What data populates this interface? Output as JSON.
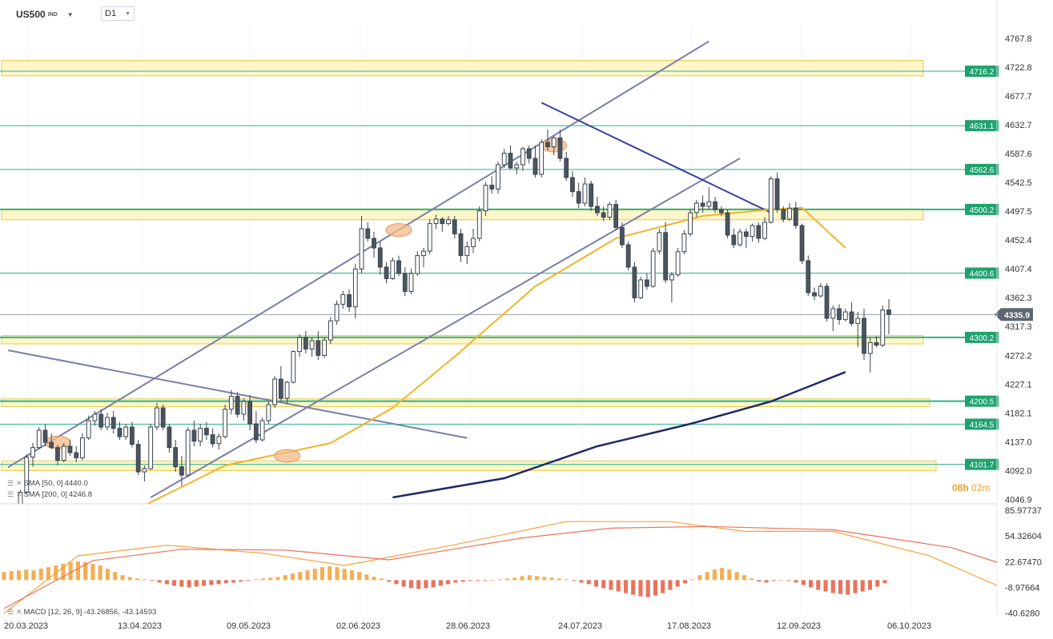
{
  "header": {
    "symbol": "US500",
    "symbol_sup": "IND",
    "timeframe": "D1"
  },
  "indicators": {
    "sma50": {
      "label": "SMA [50, 0]",
      "value": "4440.0"
    },
    "sma200": {
      "label": "SMA [200, 0]",
      "value": "4246.8"
    },
    "macd": {
      "label": "MACD [12, 26, 9]",
      "values": "-43.26856, -43.14593"
    }
  },
  "timer": {
    "hours": "08h",
    "minutes": "02m"
  },
  "colors": {
    "up": "#ffffff",
    "down": "#4a5560",
    "level_line": "#2bb38b",
    "level_badge": "#1ea370",
    "zone_fill": "#fff4b8",
    "zone_border": "#e8c84a",
    "sma50": "#f0b429",
    "sma200": "#1f2a6b",
    "trend_line": "#7a7fa8",
    "macd_up": "#f4ae54",
    "macd_down": "#e8735a",
    "marker": "#f3b98a",
    "current_badge": "#5e6670"
  },
  "chart_data": {
    "type": "candlestick",
    "instrument": "US500",
    "timeframe": "D1",
    "price_axis_ticks": [
      "4767.8",
      "4722.8",
      "4677.7",
      "4632.7",
      "4587.6",
      "4542.5",
      "4497.5",
      "4452.4",
      "4407.4",
      "4362.3",
      "4317.3",
      "4272.2",
      "4227.1",
      "4182.1",
      "4137.0",
      "4092.0",
      "4046.9"
    ],
    "price_range": [
      4040,
      4790
    ],
    "date_ticks": [
      "20.03.2023",
      "13.04.2023",
      "09.05.2023",
      "02.06.2023",
      "28.06.2023",
      "24.07.2023",
      "17.08.2023",
      "12.09.2023",
      "06.10.2023"
    ],
    "horizontal_levels": [
      4716.2,
      4631.1,
      4562.6,
      4500.2,
      4400.6,
      4300.2,
      4200.5,
      4164.5,
      4101.7
    ],
    "level_labels": [
      "4716.2",
      "4631.1",
      "4562.6",
      "4500.2",
      "4400.6",
      "4300.2",
      "4200.5",
      "4164.5",
      "4101.7"
    ],
    "supply_demand_zones": [
      [
        4709,
        4733
      ],
      [
        4484,
        4501
      ],
      [
        4290,
        4303
      ],
      [
        4192,
        4204
      ],
      [
        4092,
        4107
      ]
    ],
    "current_price": 4335.9,
    "current_price_label": "4335.9",
    "candles": [
      [
        4002,
        4012,
        3990,
        4000
      ],
      [
        4000,
        4035,
        3995,
        4030
      ],
      [
        4030,
        4062,
        4025,
        4058
      ],
      [
        4058,
        4118,
        4055,
        4113
      ],
      [
        4113,
        4135,
        4098,
        4128
      ],
      [
        4128,
        4160,
        4125,
        4155
      ],
      [
        4155,
        4165,
        4130,
        4136
      ],
      [
        4136,
        4150,
        4125,
        4128
      ],
      [
        4128,
        4132,
        4100,
        4108
      ],
      [
        4108,
        4135,
        4105,
        4130
      ],
      [
        4130,
        4140,
        4115,
        4120
      ],
      [
        4120,
        4130,
        4105,
        4112
      ],
      [
        4112,
        4150,
        4108,
        4143
      ],
      [
        4143,
        4178,
        4140,
        4170
      ],
      [
        4170,
        4185,
        4162,
        4180
      ],
      [
        4180,
        4188,
        4155,
        4160
      ],
      [
        4160,
        4182,
        4155,
        4175
      ],
      [
        4175,
        4185,
        4150,
        4158
      ],
      [
        4158,
        4168,
        4140,
        4145
      ],
      [
        4145,
        4165,
        4140,
        4160
      ],
      [
        4160,
        4168,
        4128,
        4133
      ],
      [
        4133,
        4140,
        4085,
        4090
      ],
      [
        4090,
        4100,
        4075,
        4095
      ],
      [
        4095,
        4165,
        4093,
        4160
      ],
      [
        4160,
        4198,
        4155,
        4190
      ],
      [
        4190,
        4195,
        4155,
        4160
      ],
      [
        4160,
        4165,
        4120,
        4128
      ],
      [
        4128,
        4140,
        4090,
        4098
      ],
      [
        4098,
        4115,
        4068,
        4085
      ],
      [
        4085,
        4160,
        4082,
        4155
      ],
      [
        4155,
        4170,
        4130,
        4138
      ],
      [
        4138,
        4165,
        4130,
        4158
      ],
      [
        4158,
        4168,
        4140,
        4148
      ],
      [
        4148,
        4158,
        4128,
        4134
      ],
      [
        4134,
        4150,
        4125,
        4145
      ],
      [
        4145,
        4195,
        4142,
        4188
      ],
      [
        4188,
        4218,
        4180,
        4208
      ],
      [
        4208,
        4215,
        4175,
        4180
      ],
      [
        4180,
        4205,
        4170,
        4200
      ],
      [
        4200,
        4210,
        4155,
        4165
      ],
      [
        4165,
        4185,
        4135,
        4140
      ],
      [
        4140,
        4175,
        4137,
        4170
      ],
      [
        4170,
        4200,
        4165,
        4195
      ],
      [
        4195,
        4240,
        4190,
        4235
      ],
      [
        4235,
        4255,
        4200,
        4205
      ],
      [
        4205,
        4232,
        4196,
        4230
      ],
      [
        4230,
        4280,
        4228,
        4278
      ],
      [
        4278,
        4305,
        4270,
        4300
      ],
      [
        4300,
        4310,
        4275,
        4282
      ],
      [
        4282,
        4300,
        4270,
        4295
      ],
      [
        4295,
        4310,
        4265,
        4272
      ],
      [
        4272,
        4300,
        4268,
        4296
      ],
      [
        4296,
        4332,
        4290,
        4326
      ],
      [
        4326,
        4358,
        4320,
        4352
      ],
      [
        4352,
        4373,
        4345,
        4367
      ],
      [
        4367,
        4375,
        4340,
        4348
      ],
      [
        4348,
        4415,
        4330,
        4407
      ],
      [
        4407,
        4490,
        4400,
        4470
      ],
      [
        4470,
        4480,
        4450,
        4455
      ],
      [
        4455,
        4465,
        4425,
        4440
      ],
      [
        4440,
        4450,
        4398,
        4410
      ],
      [
        4410,
        4418,
        4385,
        4392
      ],
      [
        4392,
        4425,
        4390,
        4420
      ],
      [
        4420,
        4428,
        4396,
        4400
      ],
      [
        4400,
        4410,
        4365,
        4372
      ],
      [
        4372,
        4408,
        4368,
        4400
      ],
      [
        4400,
        4435,
        4396,
        4428
      ],
      [
        4428,
        4440,
        4410,
        4435
      ],
      [
        4435,
        4485,
        4430,
        4478
      ],
      [
        4478,
        4492,
        4470,
        4485
      ],
      [
        4485,
        4488,
        4465,
        4478
      ],
      [
        4478,
        4490,
        4475,
        4484
      ],
      [
        4484,
        4490,
        4455,
        4462
      ],
      [
        4462,
        4470,
        4418,
        4428
      ],
      [
        4428,
        4450,
        4415,
        4442
      ],
      [
        4442,
        4470,
        4432,
        4455
      ],
      [
        4455,
        4505,
        4450,
        4498
      ],
      [
        4498,
        4543,
        4490,
        4538
      ],
      [
        4538,
        4552,
        4525,
        4532
      ],
      [
        4532,
        4575,
        4525,
        4570
      ],
      [
        4570,
        4595,
        4565,
        4588
      ],
      [
        4588,
        4600,
        4562,
        4565
      ],
      [
        4565,
        4575,
        4555,
        4570
      ],
      [
        4570,
        4598,
        4560,
        4595
      ],
      [
        4595,
        4600,
        4572,
        4580
      ],
      [
        4580,
        4600,
        4550,
        4555
      ],
      [
        4555,
        4610,
        4550,
        4605
      ],
      [
        4605,
        4625,
        4592,
        4598
      ],
      [
        4598,
        4615,
        4585,
        4612
      ],
      [
        4612,
        4625,
        4575,
        4580
      ],
      [
        4580,
        4590,
        4545,
        4550
      ],
      [
        4550,
        4560,
        4520,
        4528
      ],
      [
        4528,
        4542,
        4502,
        4510
      ],
      [
        4510,
        4550,
        4505,
        4540
      ],
      [
        4540,
        4545,
        4498,
        4505
      ],
      [
        4505,
        4520,
        4490,
        4495
      ],
      [
        4495,
        4505,
        4482,
        4488
      ],
      [
        4488,
        4512,
        4484,
        4508
      ],
      [
        4508,
        4515,
        4468,
        4472
      ],
      [
        4472,
        4480,
        4440,
        4445
      ],
      [
        4445,
        4450,
        4405,
        4410
      ],
      [
        4410,
        4418,
        4355,
        4362
      ],
      [
        4362,
        4395,
        4360,
        4390
      ],
      [
        4390,
        4400,
        4375,
        4380
      ],
      [
        4380,
        4440,
        4378,
        4435
      ],
      [
        4435,
        4470,
        4430,
        4464
      ],
      [
        4464,
        4480,
        4385,
        4390
      ],
      [
        4390,
        4402,
        4355,
        4398
      ],
      [
        4398,
        4440,
        4395,
        4434
      ],
      [
        4434,
        4468,
        4430,
        4462
      ],
      [
        4462,
        4500,
        4458,
        4495
      ],
      [
        4495,
        4515,
        4488,
        4510
      ],
      [
        4510,
        4522,
        4495,
        4505
      ],
      [
        4505,
        4535,
        4500,
        4512
      ],
      [
        4512,
        4520,
        4495,
        4500
      ],
      [
        4500,
        4505,
        4490,
        4495
      ],
      [
        4495,
        4500,
        4455,
        4460
      ],
      [
        4460,
        4470,
        4440,
        4445
      ],
      [
        4445,
        4470,
        4442,
        4465
      ],
      [
        4465,
        4470,
        4440,
        4458
      ],
      [
        4458,
        4478,
        4450,
        4475
      ],
      [
        4475,
        4480,
        4448,
        4455
      ],
      [
        4455,
        4488,
        4452,
        4480
      ],
      [
        4480,
        4552,
        4478,
        4548
      ],
      [
        4548,
        4558,
        4495,
        4500
      ],
      [
        4500,
        4505,
        4480,
        4485
      ],
      [
        4485,
        4510,
        4482,
        4502
      ],
      [
        4502,
        4512,
        4470,
        4475
      ],
      [
        4475,
        4478,
        4415,
        4420
      ],
      [
        4420,
        4428,
        4365,
        4370
      ],
      [
        4370,
        4378,
        4358,
        4365
      ],
      [
        4365,
        4385,
        4362,
        4380
      ],
      [
        4380,
        4385,
        4325,
        4330
      ],
      [
        4330,
        4350,
        4310,
        4345
      ],
      [
        4345,
        4352,
        4320,
        4328
      ],
      [
        4328,
        4345,
        4325,
        4340
      ],
      [
        4340,
        4355,
        4318,
        4322
      ],
      [
        4322,
        4340,
        4285,
        4330
      ],
      [
        4330,
        4345,
        4265,
        4275
      ],
      [
        4275,
        4300,
        4245,
        4292
      ],
      [
        4292,
        4302,
        4285,
        4288
      ],
      [
        4288,
        4350,
        4285,
        4343
      ],
      [
        4343,
        4360,
        4305,
        4336
      ]
    ],
    "sma50": [
      [
        20,
        4028
      ],
      [
        35,
        4100
      ],
      [
        52,
        4135
      ],
      [
        62,
        4190
      ],
      [
        72,
        4270
      ],
      [
        85,
        4380
      ],
      [
        98,
        4455
      ],
      [
        112,
        4490
      ],
      [
        123,
        4500
      ],
      [
        128,
        4503
      ],
      [
        135,
        4440
      ]
    ],
    "sma200": [
      [
        62,
        4050
      ],
      [
        80,
        4080
      ],
      [
        95,
        4130
      ],
      [
        110,
        4165
      ],
      [
        123,
        4200
      ],
      [
        135,
        4246
      ]
    ],
    "trend_lines": [
      {
        "from": [
          0,
          4097
        ],
        "to": [
          113,
          4763
        ]
      },
      {
        "from": [
          23,
          4050
        ],
        "to": [
          118,
          4580
        ]
      },
      {
        "from": [
          86,
          4667
        ],
        "to": [
          123,
          4495
        ]
      },
      {
        "from": [
          0,
          4280
        ],
        "to": [
          74,
          4143
        ]
      }
    ],
    "macd": {
      "axis_ticks": [
        "85.97737",
        "54.32604",
        "22.67470",
        "-8.97664",
        "-40.6280"
      ],
      "range": [
        -42,
        88
      ],
      "label": "MACD [12, 26, 9]",
      "values_label": "-43.26856, -43.14593",
      "histogram": [
        10,
        11,
        12,
        13,
        12,
        14,
        16,
        18,
        20,
        22,
        23,
        22,
        20,
        18,
        14,
        10,
        6,
        4,
        2,
        1,
        -1,
        -3,
        -5,
        -7,
        -8,
        -9,
        -8,
        -7,
        -6,
        -5,
        -4,
        -3,
        -2,
        -1,
        1,
        2,
        3,
        4,
        6,
        8,
        10,
        12,
        14,
        16,
        17,
        16,
        14,
        12,
        10,
        7,
        4,
        2,
        -2,
        -5,
        -8,
        -10,
        -11,
        -10,
        -9,
        -7,
        -5,
        -3,
        -2,
        -1,
        -1,
        -1,
        0,
        1,
        2,
        3,
        5,
        6,
        5,
        4,
        3,
        2,
        1,
        -1,
        -3,
        -5,
        -8,
        -10,
        -12,
        -14,
        -16,
        -18,
        -20,
        -21,
        -19,
        -16,
        -12,
        -8,
        -4,
        1,
        6,
        10,
        13,
        15,
        13,
        10,
        6,
        2,
        -2,
        -3,
        -1,
        0,
        -1,
        -3,
        -6,
        -9,
        -12,
        -14,
        -16,
        -17,
        -18,
        -16,
        -14,
        -12,
        -8,
        -4
      ],
      "macd_line": [
        [
          0,
          -41
        ],
        [
          10,
          30
        ],
        [
          22,
          43
        ],
        [
          35,
          33
        ],
        [
          46,
          18
        ],
        [
          60,
          42
        ],
        [
          76,
          72
        ],
        [
          90,
          72
        ],
        [
          100,
          60
        ],
        [
          112,
          60
        ],
        [
          125,
          30
        ],
        [
          135,
          -10
        ],
        [
          148,
          -38
        ],
        [
          160,
          0
        ],
        [
          172,
          10
        ],
        [
          185,
          -25
        ],
        [
          195,
          -44
        ]
      ],
      "signal_line": [
        [
          0,
          -35
        ],
        [
          12,
          24
        ],
        [
          24,
          38
        ],
        [
          38,
          37
        ],
        [
          52,
          25
        ],
        [
          70,
          52
        ],
        [
          82,
          64
        ],
        [
          95,
          66
        ],
        [
          112,
          62
        ],
        [
          128,
          40
        ],
        [
          145,
          -10
        ],
        [
          160,
          -8
        ],
        [
          175,
          5
        ],
        [
          188,
          -18
        ],
        [
          196,
          -43
        ]
      ]
    }
  }
}
